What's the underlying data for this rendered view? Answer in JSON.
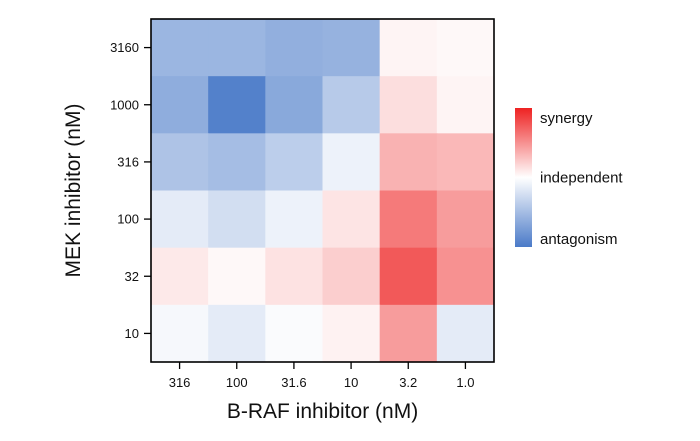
{
  "chart_data": {
    "type": "heatmap",
    "title": "",
    "xlabel": "B-RAF inhibitor (nM)",
    "ylabel": "MEK inhibitor (nM)",
    "x_categories": [
      "316",
      "100",
      "31.6",
      "10",
      "3.2",
      "1.0"
    ],
    "y_categories_top_to_bottom": [
      "3160",
      "1000",
      "316",
      "100",
      "32",
      "10"
    ],
    "values": [
      [
        -0.55,
        -0.55,
        -0.6,
        -0.58,
        0.05,
        0.03
      ],
      [
        -0.62,
        -0.95,
        -0.65,
        -0.4,
        0.15,
        0.05
      ],
      [
        -0.45,
        -0.5,
        -0.37,
        -0.1,
        0.35,
        0.32
      ],
      [
        -0.15,
        -0.25,
        -0.1,
        0.12,
        0.6,
        0.45
      ],
      [
        0.1,
        0.03,
        0.13,
        0.22,
        0.75,
        0.5
      ],
      [
        -0.05,
        -0.15,
        -0.03,
        0.06,
        0.45,
        -0.15
      ]
    ],
    "value_range": [
      -1,
      1
    ],
    "colorscale": {
      "low_color": "#4a7ac8",
      "mid_color": "#ffffff",
      "high_color": "#ee2222"
    },
    "legend": {
      "position": "right",
      "labels": [
        {
          "text": "synergy",
          "value": 1
        },
        {
          "text": "independent",
          "value": 0
        },
        {
          "text": "antagonism",
          "value": -1
        }
      ]
    },
    "grid": false
  }
}
